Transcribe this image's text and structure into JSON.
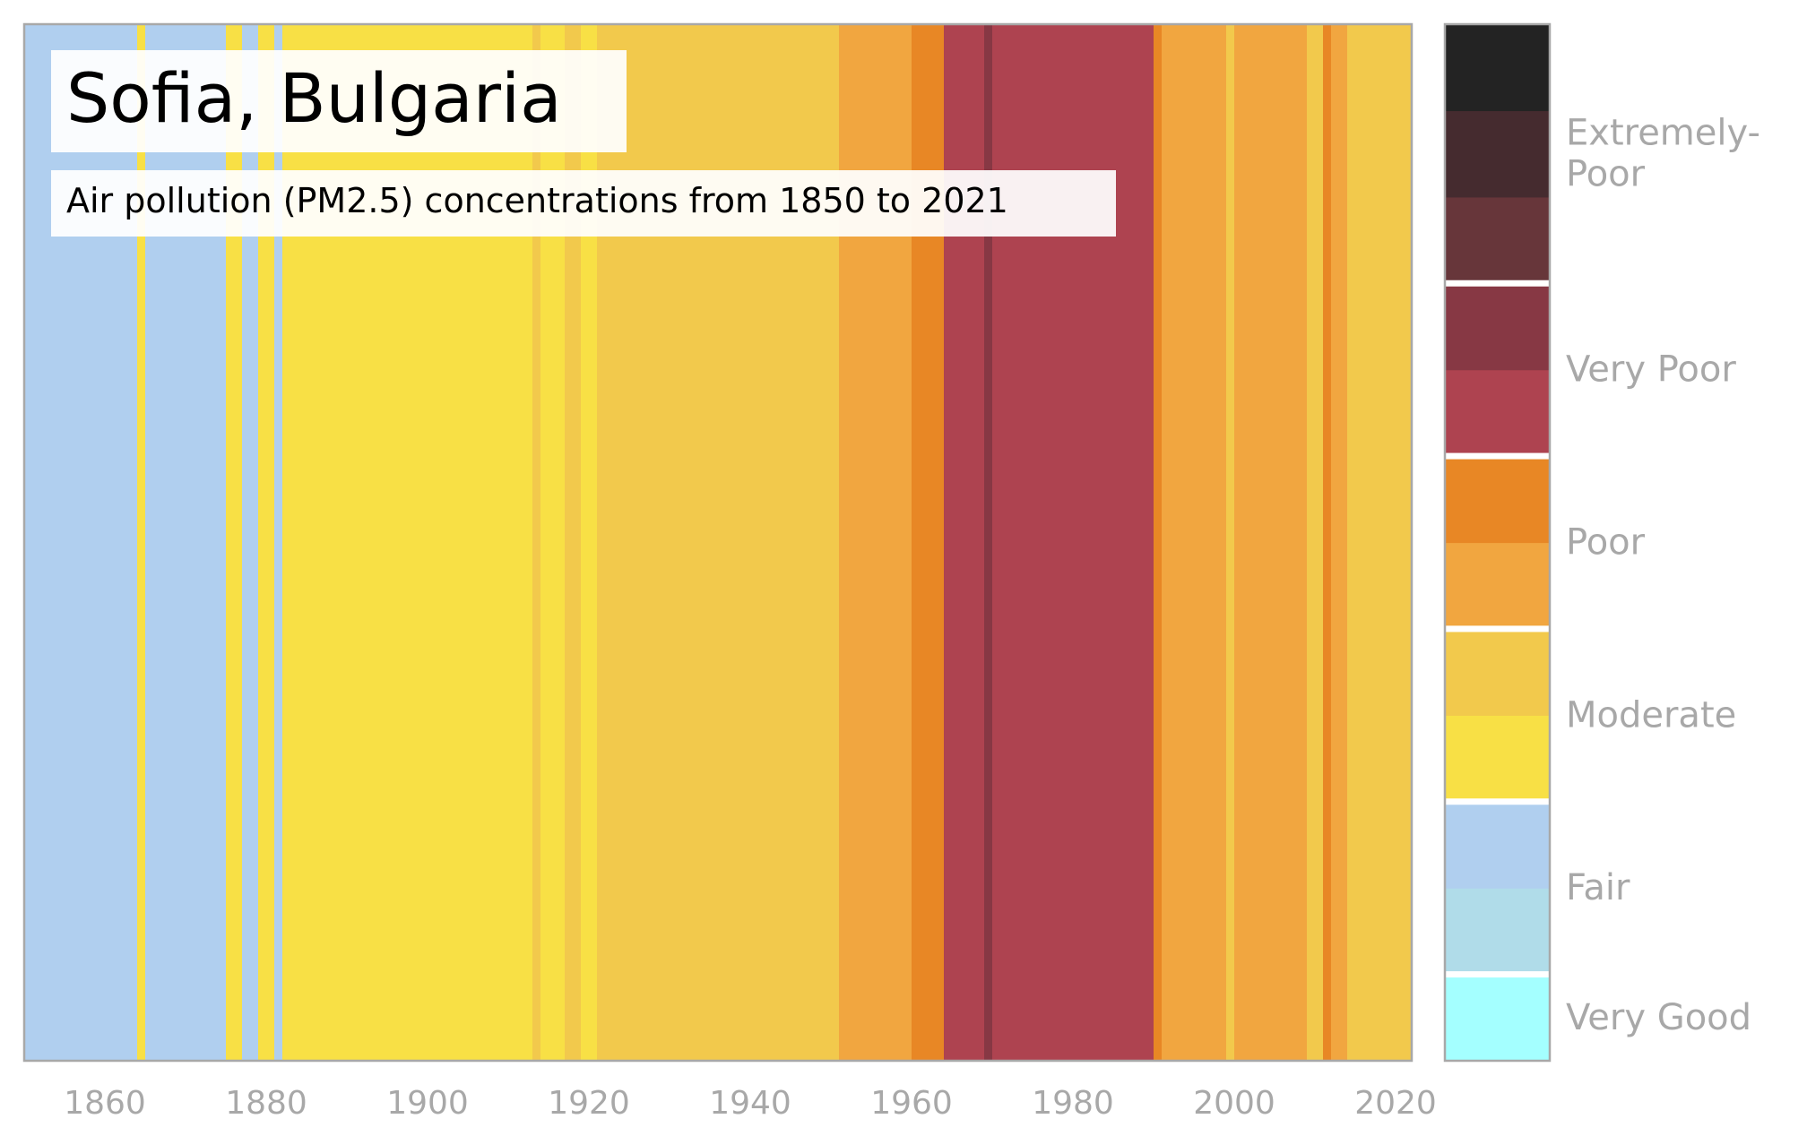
{
  "chart_data": {
    "type": "heatmap",
    "title": "Sofia, Bulgaria",
    "subtitle": "Air pollution (PM2.5) concentrations from 1850 to 2021",
    "x_range": [
      1850,
      2022
    ],
    "x_ticks": [
      "1860",
      "1880",
      "1900",
      "1920",
      "1940",
      "1960",
      "1980",
      "2000",
      "2020"
    ],
    "levels": [
      {
        "key": "very_good_1",
        "color": "#a4ffff"
      },
      {
        "key": "fair_1",
        "color": "#b0dce9"
      },
      {
        "key": "fair_2",
        "color": "#b0cfef"
      },
      {
        "key": "moderate_1",
        "color": "#f8e045"
      },
      {
        "key": "moderate_2",
        "color": "#f2c94c"
      },
      {
        "key": "poor_1",
        "color": "#f1a640"
      },
      {
        "key": "poor_2",
        "color": "#e88725"
      },
      {
        "key": "very_poor_1",
        "color": "#ae4350"
      },
      {
        "key": "very_poor_2",
        "color": "#873844"
      },
      {
        "key": "extremely_poor_1",
        "color": "#67363a"
      },
      {
        "key": "extremely_poor_2",
        "color": "#452b2f"
      },
      {
        "key": "extremely_poor_3",
        "color": "#232323"
      }
    ],
    "legend_groups": [
      {
        "label": "Very Good",
        "from": 0,
        "to": 1
      },
      {
        "label": "Fair",
        "from": 1,
        "to": 3
      },
      {
        "label": "Moderate",
        "from": 3,
        "to": 5
      },
      {
        "label": "Poor",
        "from": 5,
        "to": 7
      },
      {
        "label": "Very Poor",
        "from": 7,
        "to": 9
      },
      {
        "label": "Extremely-\nPoor",
        "from": 9,
        "to": 12
      }
    ],
    "stripes": [
      {
        "start": 1850,
        "end": 1864,
        "level": 2
      },
      {
        "start": 1864,
        "end": 1865,
        "level": 3
      },
      {
        "start": 1865,
        "end": 1875,
        "level": 2
      },
      {
        "start": 1875,
        "end": 1877,
        "level": 3
      },
      {
        "start": 1877,
        "end": 1879,
        "level": 2
      },
      {
        "start": 1879,
        "end": 1881,
        "level": 3
      },
      {
        "start": 1881,
        "end": 1882,
        "level": 2
      },
      {
        "start": 1882,
        "end": 1913,
        "level": 3
      },
      {
        "start": 1913,
        "end": 1914,
        "level": 4
      },
      {
        "start": 1914,
        "end": 1917,
        "level": 3
      },
      {
        "start": 1917,
        "end": 1919,
        "level": 4
      },
      {
        "start": 1919,
        "end": 1921,
        "level": 3
      },
      {
        "start": 1921,
        "end": 1951,
        "level": 4
      },
      {
        "start": 1951,
        "end": 1960,
        "level": 5
      },
      {
        "start": 1960,
        "end": 1964,
        "level": 6
      },
      {
        "start": 1964,
        "end": 1969,
        "level": 7
      },
      {
        "start": 1969,
        "end": 1970,
        "level": 8
      },
      {
        "start": 1970,
        "end": 1990,
        "level": 7
      },
      {
        "start": 1990,
        "end": 1991,
        "level": 6
      },
      {
        "start": 1991,
        "end": 1999,
        "level": 5
      },
      {
        "start": 1999,
        "end": 2000,
        "level": 4
      },
      {
        "start": 2000,
        "end": 2009,
        "level": 5
      },
      {
        "start": 2009,
        "end": 2011,
        "level": 4
      },
      {
        "start": 2011,
        "end": 2012,
        "level": 6
      },
      {
        "start": 2012,
        "end": 2014,
        "level": 5
      },
      {
        "start": 2014,
        "end": 2022,
        "level": 4
      }
    ]
  }
}
